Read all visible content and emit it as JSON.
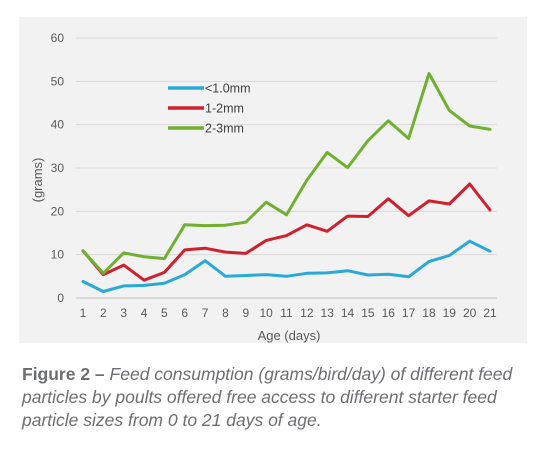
{
  "chart_data": {
    "type": "line",
    "x": [
      1,
      2,
      3,
      4,
      5,
      6,
      7,
      8,
      9,
      10,
      11,
      12,
      13,
      14,
      15,
      16,
      17,
      18,
      19,
      20,
      21
    ],
    "xlabel": "Age (days)",
    "ylabel": "(grams)",
    "ylim": [
      0,
      60
    ],
    "yticks": [
      0,
      10,
      20,
      30,
      40,
      50,
      60
    ],
    "grid": "horizontal",
    "legend_position": "upper-left inside plot",
    "series": [
      {
        "name": "<1.0mm",
        "color": "#29a9d6",
        "values": [
          3.8,
          1.5,
          2.8,
          2.9,
          3.4,
          5.4,
          8.6,
          5.0,
          5.2,
          5.4,
          5.0,
          5.7,
          5.8,
          6.3,
          5.3,
          5.5,
          4.9,
          8.4,
          9.8,
          13.1,
          10.8
        ]
      },
      {
        "name": "1-2mm",
        "color": "#d0202e",
        "values": [
          10.9,
          5.4,
          7.6,
          4.1,
          5.9,
          11.1,
          11.5,
          10.6,
          10.3,
          13.3,
          14.4,
          16.9,
          15.4,
          18.9,
          18.8,
          22.9,
          19.0,
          22.4,
          21.7,
          26.3,
          20.3
        ]
      },
      {
        "name": "2-3mm",
        "color": "#70b030",
        "values": [
          10.9,
          5.7,
          10.4,
          9.5,
          9.1,
          16.9,
          16.7,
          16.8,
          17.5,
          22.1,
          19.2,
          27.2,
          33.6,
          30.1,
          36.3,
          40.9,
          36.8,
          51.8,
          43.3,
          39.7,
          38.9
        ]
      }
    ]
  },
  "caption": {
    "label": "Figure 2 –",
    "text": "Feed consumption (grams/bird/day) of different feed particles by poults offered free access to different starter feed particle sizes from 0 to 21 days of age."
  }
}
